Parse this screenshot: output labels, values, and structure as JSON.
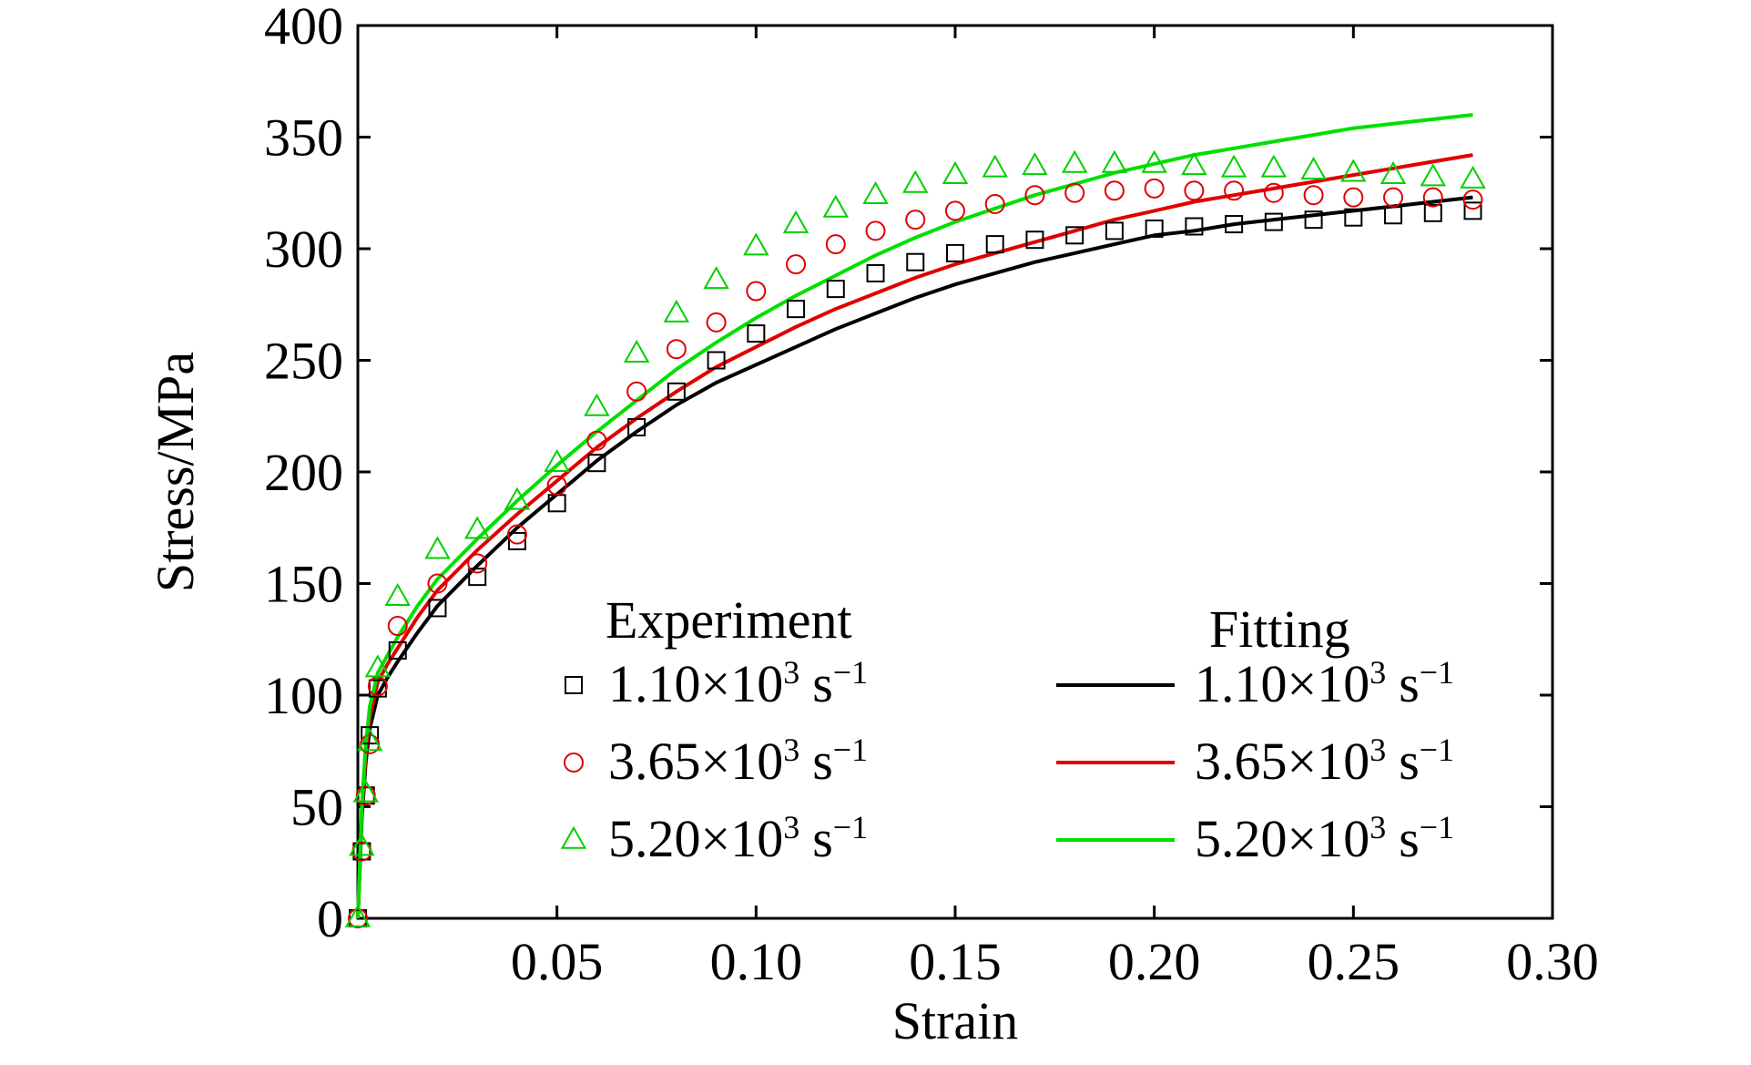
{
  "chart_data": {
    "type": "line",
    "xlabel": "Strain",
    "ylabel": "Stress/MPa",
    "xlim": [
      0,
      0.3
    ],
    "ylim": [
      0,
      400
    ],
    "x_ticks": [
      0.05,
      0.1,
      0.15,
      0.2,
      0.25,
      0.3
    ],
    "x_tick_labels": [
      "0.05",
      "0.10",
      "0.15",
      "0.20",
      "0.25",
      "0.30"
    ],
    "y_ticks": [
      0,
      50,
      100,
      150,
      200,
      250,
      300,
      350,
      400
    ],
    "y_tick_labels": [
      "0",
      "50",
      "100",
      "150",
      "200",
      "250",
      "300",
      "350",
      "400"
    ],
    "grid": false,
    "legend": {
      "placement": "bottom-right",
      "experiment_title": "Experiment",
      "fitting_title": "Fitting"
    },
    "experiment_series": [
      {
        "name": "1.10×10³ s⁻¹",
        "label_main": "1.10×10",
        "label_exp": "3",
        "label_unit": "s",
        "label_unit_exp": "−1",
        "marker": "square",
        "color": "#000000",
        "x": [
          0.0,
          0.001,
          0.002,
          0.003,
          0.005,
          0.01,
          0.02,
          0.03,
          0.04,
          0.05,
          0.06,
          0.07,
          0.08,
          0.09,
          0.1,
          0.11,
          0.12,
          0.13,
          0.14,
          0.15,
          0.16,
          0.17,
          0.18,
          0.19,
          0.2,
          0.21,
          0.22,
          0.23,
          0.24,
          0.25,
          0.26,
          0.27,
          0.28
        ],
        "y": [
          0,
          30,
          55,
          82,
          103,
          120,
          139,
          153,
          169,
          186,
          204,
          220,
          236,
          250,
          262,
          273,
          282,
          289,
          294,
          298,
          302,
          304,
          306,
          308,
          309,
          310,
          311,
          312,
          313,
          314,
          315,
          316,
          317
        ]
      },
      {
        "name": "3.65×10³ s⁻¹",
        "label_main": "3.65×10",
        "label_exp": "3",
        "label_unit": "s",
        "label_unit_exp": "−1",
        "marker": "circle",
        "color": "#e00000",
        "x": [
          0.0,
          0.001,
          0.002,
          0.003,
          0.005,
          0.01,
          0.02,
          0.03,
          0.04,
          0.05,
          0.06,
          0.07,
          0.08,
          0.09,
          0.1,
          0.11,
          0.12,
          0.13,
          0.14,
          0.15,
          0.16,
          0.17,
          0.18,
          0.19,
          0.2,
          0.21,
          0.22,
          0.23,
          0.24,
          0.25,
          0.26,
          0.27,
          0.28
        ],
        "y": [
          0,
          30,
          55,
          78,
          104,
          131,
          150,
          159,
          172,
          194,
          214,
          236,
          255,
          267,
          281,
          293,
          302,
          308,
          313,
          317,
          320,
          324,
          325,
          326,
          327,
          326,
          326,
          325,
          324,
          323,
          323,
          323,
          322
        ]
      },
      {
        "name": "5.20×10³ s⁻¹",
        "label_main": "5.20×10",
        "label_exp": "3",
        "label_unit": "s",
        "label_unit_exp": "−1",
        "marker": "triangle",
        "color": "#00d000",
        "x": [
          0.0,
          0.001,
          0.002,
          0.003,
          0.005,
          0.01,
          0.02,
          0.03,
          0.04,
          0.05,
          0.06,
          0.07,
          0.08,
          0.09,
          0.1,
          0.11,
          0.12,
          0.13,
          0.14,
          0.15,
          0.16,
          0.17,
          0.18,
          0.19,
          0.2,
          0.21,
          0.22,
          0.23,
          0.24,
          0.25,
          0.26,
          0.27,
          0.28
        ],
        "y": [
          0,
          32,
          56,
          79,
          112,
          144,
          165,
          174,
          187,
          204,
          229,
          253,
          271,
          286,
          301,
          311,
          318,
          324,
          329,
          333,
          336,
          337,
          338,
          338,
          338,
          337,
          336,
          336,
          335,
          334,
          333,
          332,
          331
        ]
      }
    ],
    "fitting_series": [
      {
        "name": "1.10×10³ s⁻¹",
        "label_main": "1.10×10",
        "label_exp": "3",
        "label_unit": "s",
        "label_unit_exp": "−1",
        "color": "#000000",
        "x": [
          0.0,
          0.001,
          0.002,
          0.003,
          0.005,
          0.0075,
          0.01,
          0.015,
          0.02,
          0.03,
          0.04,
          0.05,
          0.06,
          0.07,
          0.08,
          0.09,
          0.1,
          0.11,
          0.12,
          0.13,
          0.14,
          0.15,
          0.16,
          0.17,
          0.18,
          0.19,
          0.2,
          0.21,
          0.22,
          0.23,
          0.24,
          0.25,
          0.26,
          0.27,
          0.28
        ],
        "y": [
          0,
          45,
          70,
          85,
          100,
          108,
          115,
          128,
          140,
          158,
          175,
          190,
          205,
          218,
          230,
          240,
          248,
          256,
          264,
          271,
          278,
          284,
          289,
          294,
          298,
          302,
          306,
          308,
          311,
          313,
          315,
          317,
          319,
          321,
          323
        ]
      },
      {
        "name": "3.65×10³ s⁻¹",
        "label_main": "3.65×10",
        "label_exp": "3",
        "label_unit": "s",
        "label_unit_exp": "−1",
        "color": "#e00000",
        "x": [
          0.0,
          0.001,
          0.002,
          0.003,
          0.005,
          0.0075,
          0.01,
          0.015,
          0.02,
          0.03,
          0.04,
          0.05,
          0.06,
          0.07,
          0.08,
          0.09,
          0.1,
          0.11,
          0.12,
          0.13,
          0.14,
          0.15,
          0.16,
          0.17,
          0.18,
          0.19,
          0.2,
          0.21,
          0.22,
          0.23,
          0.24,
          0.25,
          0.26,
          0.27,
          0.28
        ],
        "y": [
          0,
          48,
          74,
          90,
          106,
          114,
          121,
          135,
          147,
          165,
          181,
          196,
          211,
          224,
          236,
          247,
          256,
          265,
          273,
          280,
          287,
          293,
          298,
          303,
          308,
          313,
          317,
          321,
          324,
          327,
          330,
          333,
          336,
          339,
          342
        ]
      },
      {
        "name": "5.20×10³ s⁻¹",
        "label_main": "5.20×10",
        "label_exp": "3",
        "label_unit": "s",
        "label_unit_exp": "−1",
        "color": "#00e000",
        "x": [
          0.0,
          0.001,
          0.002,
          0.003,
          0.005,
          0.0075,
          0.01,
          0.015,
          0.02,
          0.03,
          0.04,
          0.05,
          0.06,
          0.07,
          0.08,
          0.09,
          0.1,
          0.11,
          0.12,
          0.13,
          0.14,
          0.15,
          0.16,
          0.17,
          0.18,
          0.19,
          0.2,
          0.21,
          0.22,
          0.23,
          0.24,
          0.25,
          0.26,
          0.27,
          0.28
        ],
        "y": [
          0,
          50,
          78,
          95,
          110,
          118,
          126,
          140,
          152,
          170,
          187,
          203,
          218,
          232,
          246,
          258,
          269,
          279,
          288,
          297,
          305,
          312,
          318,
          324,
          329,
          334,
          338,
          342,
          345,
          348,
          351,
          354,
          356,
          358,
          360
        ]
      }
    ]
  }
}
